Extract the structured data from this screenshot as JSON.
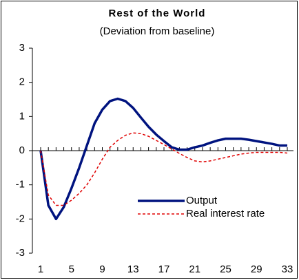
{
  "chart_data": {
    "type": "line",
    "title": "Rest of the World",
    "subtitle": "(Deviation from baseline)",
    "x": [
      1,
      2,
      3,
      4,
      5,
      6,
      7,
      8,
      9,
      10,
      11,
      12,
      13,
      14,
      15,
      16,
      17,
      18,
      19,
      20,
      21,
      22,
      23,
      24,
      25,
      26,
      27,
      28,
      29,
      30,
      31,
      32,
      33
    ],
    "xlim": [
      1,
      33
    ],
    "xticks": [
      1,
      5,
      9,
      13,
      17,
      21,
      25,
      29,
      33
    ],
    "ylim": [
      -3,
      3
    ],
    "yticks": [
      -3,
      -2,
      -1,
      0,
      1,
      2,
      3
    ],
    "legend": "lower-right",
    "series": [
      {
        "name": "Output",
        "color": "#00137f",
        "style": "solid",
        "values": [
          0,
          -1.6,
          -2.0,
          -1.65,
          -1.1,
          -0.5,
          0.15,
          0.8,
          1.2,
          1.45,
          1.52,
          1.45,
          1.25,
          0.97,
          0.7,
          0.47,
          0.28,
          0.1,
          0.03,
          0.03,
          0.1,
          0.15,
          0.23,
          0.3,
          0.35,
          0.35,
          0.35,
          0.32,
          0.28,
          0.24,
          0.2,
          0.15,
          0.15
        ]
      },
      {
        "name": "Real interest rate",
        "color": "#e00000",
        "style": "dashed",
        "values": [
          0,
          -1.3,
          -1.6,
          -1.6,
          -1.45,
          -1.25,
          -1.0,
          -0.65,
          -0.25,
          0.1,
          0.3,
          0.45,
          0.52,
          0.5,
          0.42,
          0.3,
          0.18,
          0.05,
          -0.08,
          -0.2,
          -0.3,
          -0.33,
          -0.3,
          -0.25,
          -0.2,
          -0.15,
          -0.1,
          -0.07,
          -0.05,
          -0.05,
          -0.05,
          -0.05,
          -0.07
        ]
      }
    ]
  }
}
